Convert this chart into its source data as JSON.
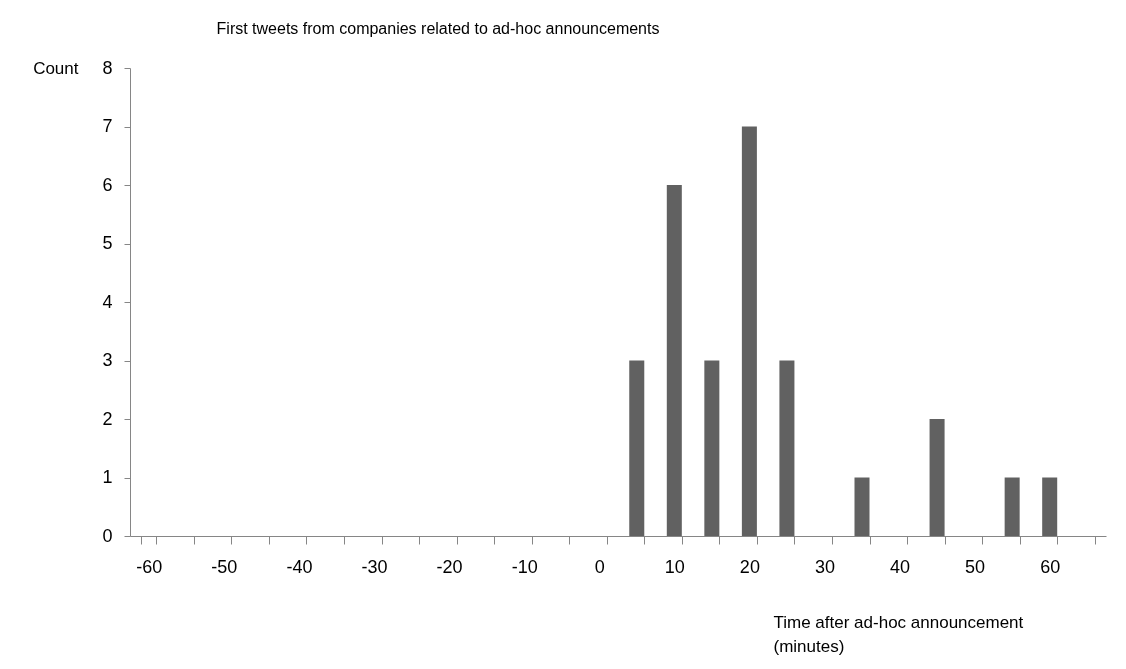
{
  "chart_data": {
    "type": "bar",
    "title": "First tweets from companies related  to ad-hoc announcements",
    "xlabel": "Time  after ad-hoc announcement (minutes)",
    "ylabel": "Count",
    "categories": [
      "-60",
      null,
      "-50",
      null,
      "-40",
      null,
      "-30",
      null,
      "-20",
      null,
      "-10",
      null,
      "0",
      null,
      "10",
      null,
      "20",
      null,
      "30",
      null,
      "40",
      null,
      "50",
      null,
      "60",
      null
    ],
    "values": [
      0,
      0,
      0,
      0,
      0,
      0,
      0,
      0,
      0,
      0,
      0,
      0,
      0,
      3,
      6,
      3,
      7,
      3,
      0,
      1,
      0,
      2,
      0,
      1,
      1,
      0
    ],
    "color": "#616161",
    "ylim": [
      0,
      8
    ],
    "yticks": [
      0,
      1,
      2,
      3,
      4,
      5,
      6,
      7,
      8
    ]
  }
}
